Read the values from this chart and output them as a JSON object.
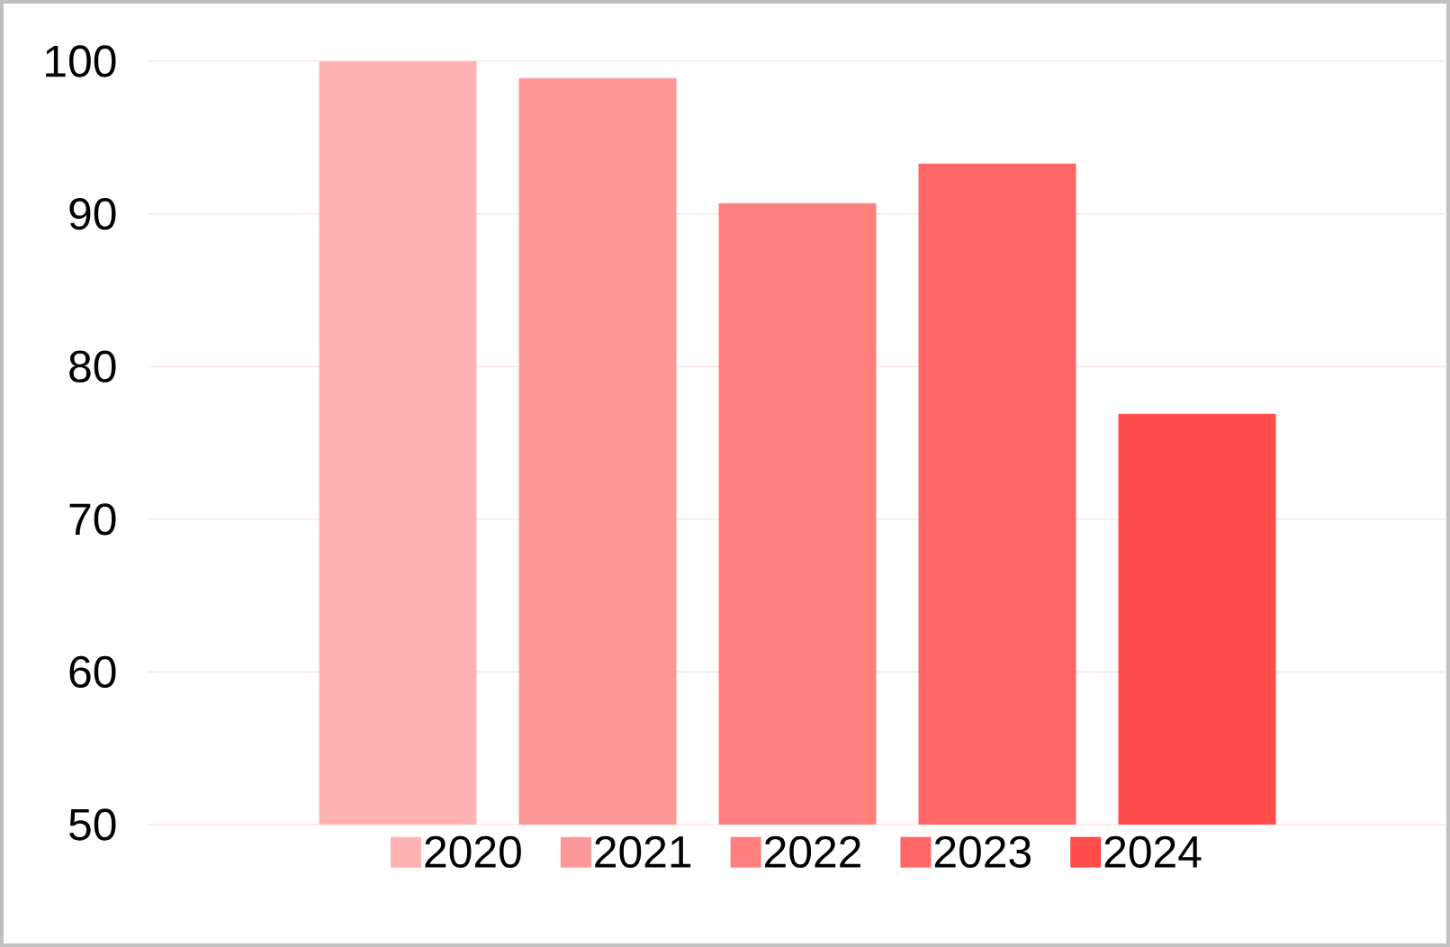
{
  "chart_data": {
    "type": "bar",
    "categories": [
      null
    ],
    "series": [
      {
        "name": "2020",
        "color": "#ffb3b3",
        "values": [
          100
        ]
      },
      {
        "name": "2021",
        "color": "#ff9999",
        "values": [
          98.9
        ]
      },
      {
        "name": "2022",
        "color": "#ff7f7f",
        "values": [
          90.7
        ]
      },
      {
        "name": "2023",
        "color": "#ff6666",
        "values": [
          93.3
        ]
      },
      {
        "name": "2024",
        "color": "#ff4d4d",
        "values": [
          76.9
        ]
      }
    ],
    "ylim": [
      50,
      100
    ],
    "yticks": [
      50,
      60,
      70,
      80,
      90,
      100
    ],
    "grid": "y",
    "legend": "bottom"
  }
}
